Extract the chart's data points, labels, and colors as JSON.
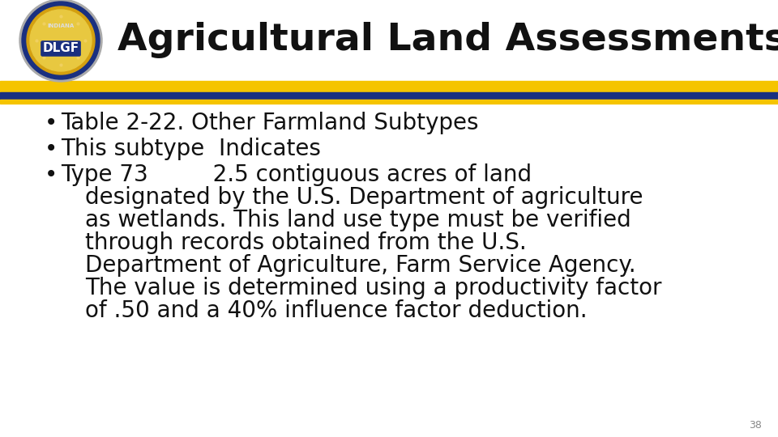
{
  "title": "Agricultural Land Assessments",
  "title_fontsize": 34,
  "title_color": "#111111",
  "background_color": "#ffffff",
  "yellow_color": "#f5c400",
  "blue_color": "#1a3080",
  "slide_number": "38",
  "bullet_points": [
    "Table 2‑22. Other Farmland Subtypes",
    "This subtype  Indicates",
    "Type 73         2.5 contiguous acres of land\ndesignated by the U.S. Department of agriculture\nas wetlands. This land use type must be verified\nthrough records obtained from the U.S.\nDepartment of Agriculture, Farm Service Agency.\nThe value is determined using a productivity factor\nof .50 and a 40% influence factor deduction."
  ],
  "bullet_fontsize": 20,
  "bullet_color": "#111111",
  "logo_outer_color": "#888888",
  "logo_ring_color": "#1a3080",
  "logo_gold_color": "#d4a010",
  "logo_inner_color": "#e8c840",
  "logo_text_color": "#1a3080",
  "logo_dlgf_color": "#ffffff"
}
